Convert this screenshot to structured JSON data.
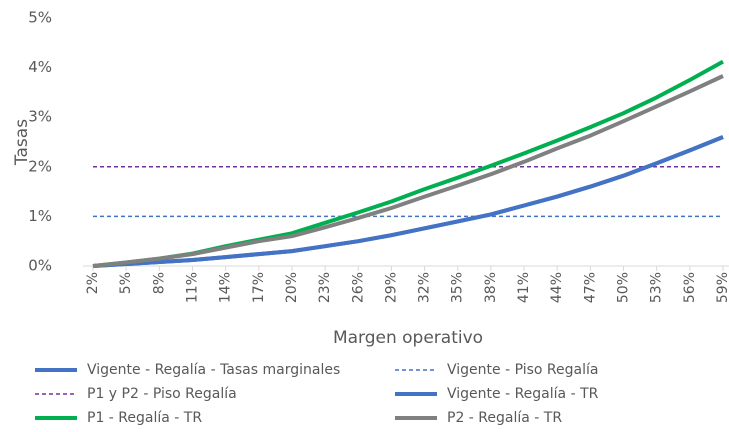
{
  "chart_data": {
    "type": "line",
    "x_label": "Margen operativo",
    "y_label": "Tasas",
    "categories": [
      "2%",
      "5%",
      "8%",
      "11%",
      "14%",
      "17%",
      "20%",
      "23%",
      "26%",
      "29%",
      "32%",
      "35%",
      "38%",
      "41%",
      "44%",
      "47%",
      "50%",
      "53%",
      "56%",
      "59%"
    ],
    "ylim": [
      0,
      5
    ],
    "yticks": [
      {
        "value": 0,
        "label": "0%"
      },
      {
        "value": 1,
        "label": "1%"
      },
      {
        "value": 2,
        "label": "2%"
      },
      {
        "value": 3,
        "label": "3%"
      },
      {
        "value": 4,
        "label": "4%"
      },
      {
        "value": 5,
        "label": "5%"
      }
    ],
    "grid": false,
    "legend": "bottom",
    "series": [
      {
        "name": "Vigente - Regalía - Tasas marginales",
        "color": "#4472c4",
        "dashed": false,
        "values": [
          0,
          0.04,
          0.08,
          0.12,
          0.18,
          0.24,
          0.3,
          0.4,
          0.5,
          0.62,
          0.76,
          0.9,
          1.04,
          1.22,
          1.4,
          1.6,
          1.82,
          2.07,
          2.33,
          2.6
        ]
      },
      {
        "name": "Vigente - Piso Regalía",
        "color": "#4472c4",
        "dashed": true,
        "values": [
          1,
          1,
          1,
          1,
          1,
          1,
          1,
          1,
          1,
          1,
          1,
          1,
          1,
          1,
          1,
          1,
          1,
          1,
          1,
          1
        ]
      },
      {
        "name": "P1 y P2 - Piso Regalía",
        "color": "#7030a0",
        "dashed": true,
        "values": [
          2,
          2,
          2,
          2,
          2,
          2,
          2,
          2,
          2,
          2,
          2,
          2,
          2,
          2,
          2,
          2,
          2,
          2,
          2,
          2
        ]
      },
      {
        "name": "Vigente - Regalía - TR",
        "color": "#4472c4",
        "dashed": false,
        "values": [
          0,
          0.04,
          0.08,
          0.12,
          0.18,
          0.24,
          0.3,
          0.4,
          0.5,
          0.62,
          0.76,
          0.9,
          1.04,
          1.22,
          1.4,
          1.6,
          1.82,
          2.07,
          2.33,
          2.6
        ]
      },
      {
        "name": "P1 - Regalía - TR",
        "color": "#00b050",
        "dashed": false,
        "values": [
          0,
          0.07,
          0.15,
          0.25,
          0.4,
          0.53,
          0.66,
          0.87,
          1.08,
          1.3,
          1.55,
          1.78,
          2.02,
          2.27,
          2.53,
          2.8,
          3.08,
          3.4,
          3.75,
          4.12
        ]
      },
      {
        "name": "P2 - Regalía - TR",
        "color": "#808080",
        "dashed": false,
        "values": [
          0,
          0.07,
          0.15,
          0.24,
          0.37,
          0.5,
          0.6,
          0.78,
          0.97,
          1.17,
          1.4,
          1.62,
          1.85,
          2.1,
          2.37,
          2.63,
          2.92,
          3.22,
          3.52,
          3.83
        ]
      }
    ]
  }
}
